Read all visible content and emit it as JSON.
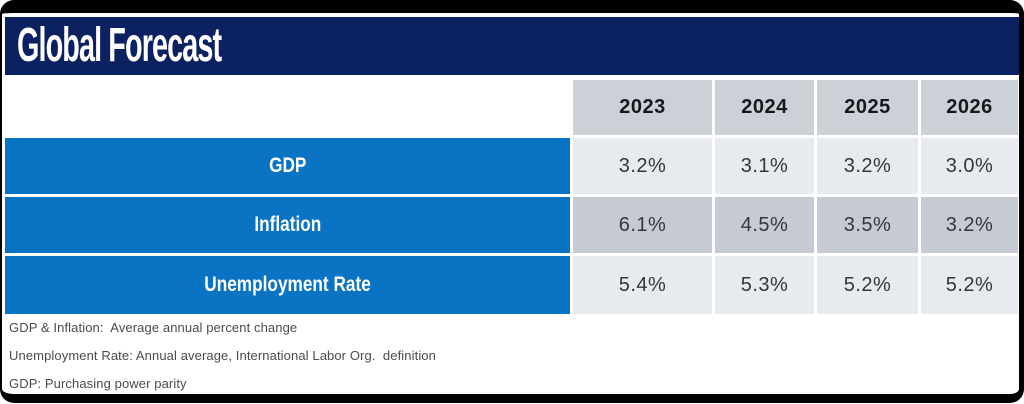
{
  "title": "Global Forecast",
  "table": {
    "years": [
      "2023",
      "2024",
      "2025",
      "2026"
    ],
    "rows": [
      {
        "label": "GDP",
        "values": [
          "3.2%",
          "3.1%",
          "3.2%",
          "3.0%"
        ]
      },
      {
        "label": "Inflation",
        "values": [
          "6.1%",
          "4.5%",
          "3.5%",
          "3.2%"
        ]
      },
      {
        "label": "Unemployment Rate",
        "values": [
          "5.4%",
          "5.3%",
          "5.2%",
          "5.2%"
        ]
      }
    ]
  },
  "footnotes": [
    "GDP & Inflation:  Average annual percent change",
    "Unemployment Rate: Annual average, International Labor Org.  definition",
    "GDP: Purchasing power parity"
  ],
  "colors": {
    "navy": "#0b2161",
    "blue": "#0a73c4",
    "headerGray": "#ccd1d7",
    "lightGray": "#e7eaee",
    "mediumGray": "#c6cbd3",
    "frame": "#000000"
  },
  "chart_data": {
    "type": "table",
    "title": "Global Forecast",
    "categories": [
      "2023",
      "2024",
      "2025",
      "2026"
    ],
    "series": [
      {
        "name": "GDP",
        "values": [
          3.2,
          3.1,
          3.2,
          3.0
        ],
        "unit": "%"
      },
      {
        "name": "Inflation",
        "values": [
          6.1,
          4.5,
          3.5,
          3.2
        ],
        "unit": "%"
      },
      {
        "name": "Unemployment Rate",
        "values": [
          5.4,
          5.3,
          5.2,
          5.2
        ],
        "unit": "%"
      }
    ],
    "notes": [
      "GDP & Inflation: Average annual percent change",
      "Unemployment Rate: Annual average, International Labor Org. definition",
      "GDP: Purchasing power parity"
    ]
  }
}
